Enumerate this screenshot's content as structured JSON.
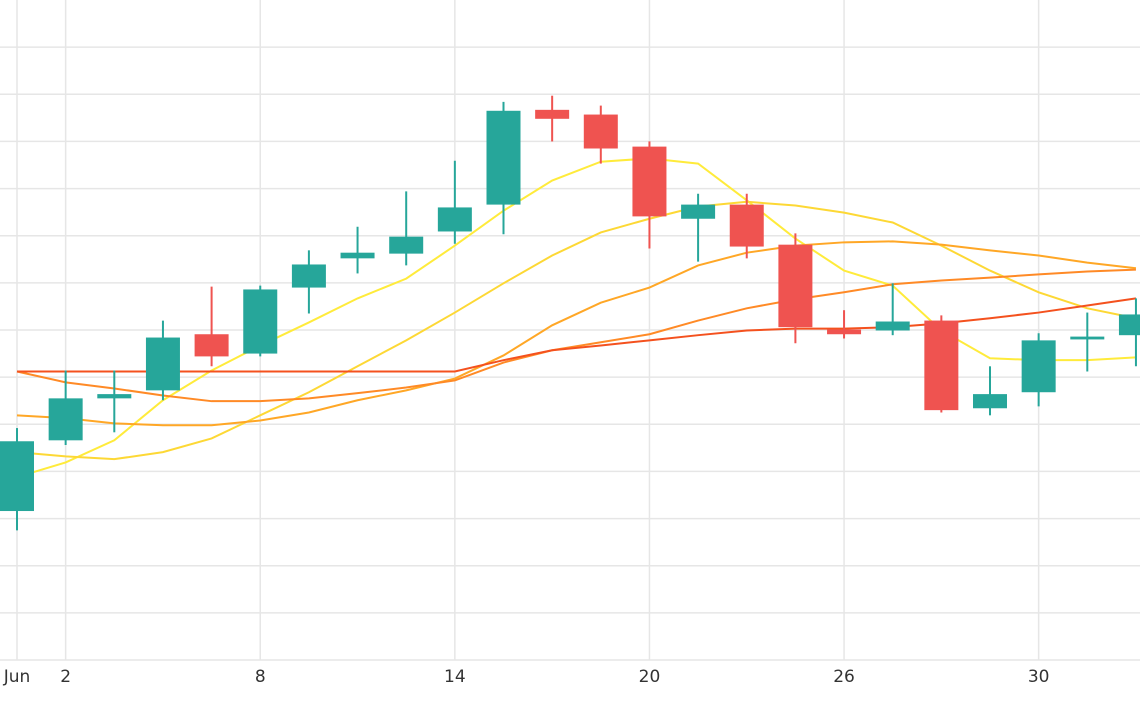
{
  "chart_data": {
    "type": "candlestick",
    "categories": [
      "Jun",
      "2",
      null,
      null,
      null,
      "8",
      null,
      null,
      null,
      "14",
      null,
      null,
      null,
      "20",
      null,
      null,
      null,
      "26",
      null,
      null,
      null,
      "30",
      null,
      null
    ],
    "open": [
      3.16,
      4.66,
      5.55,
      5.72,
      6.91,
      6.5,
      7.9,
      8.52,
      8.62,
      9.09,
      9.66,
      11.67,
      11.57,
      10.89,
      9.36,
      9.66,
      8.81,
      7.01,
      6.99,
      7.2,
      5.34,
      5.68,
      6.8,
      6.89
    ],
    "high": [
      4.92,
      6.14,
      6.14,
      7.2,
      7.92,
      7.94,
      8.69,
      9.19,
      9.94,
      10.59,
      11.84,
      11.97,
      11.76,
      11.0,
      9.89,
      9.89,
      9.05,
      7.42,
      7.99,
      7.31,
      6.23,
      6.93,
      7.37,
      7.67
    ],
    "low": [
      2.75,
      4.56,
      4.83,
      5.51,
      6.23,
      6.44,
      7.35,
      8.2,
      8.37,
      8.83,
      9.03,
      11.0,
      10.53,
      8.73,
      8.45,
      8.52,
      6.72,
      6.82,
      6.89,
      5.25,
      5.19,
      5.38,
      6.12,
      6.23
    ],
    "close": [
      4.64,
      5.55,
      5.64,
      6.84,
      6.44,
      7.86,
      8.39,
      8.64,
      8.98,
      9.6,
      11.65,
      11.48,
      10.85,
      9.41,
      9.66,
      8.77,
      7.06,
      6.91,
      7.18,
      5.3,
      5.64,
      6.78,
      6.86,
      7.33
    ],
    "up_color": "#26a69a",
    "down_color": "#ef5350",
    "lines": [
      {
        "color": "#ffeb3b",
        "values": [
          3.88,
          4.19,
          4.66,
          5.51,
          6.14,
          6.67,
          7.16,
          7.67,
          8.09,
          8.79,
          9.53,
          10.17,
          10.57,
          10.64,
          10.53,
          9.75,
          8.94,
          8.26,
          7.94,
          6.99,
          6.4,
          6.36,
          6.36,
          6.42
        ]
      },
      {
        "color": "#fdd835",
        "values": [
          4.41,
          4.32,
          4.26,
          4.41,
          4.7,
          5.19,
          5.68,
          6.23,
          6.78,
          7.37,
          7.99,
          8.58,
          9.07,
          9.36,
          9.62,
          9.72,
          9.64,
          9.49,
          9.28,
          8.79,
          8.26,
          7.8,
          7.46,
          7.25
        ]
      },
      {
        "color": "#ffa726",
        "values": [
          5.19,
          5.13,
          5.02,
          4.98,
          4.98,
          5.08,
          5.25,
          5.51,
          5.72,
          5.97,
          6.46,
          7.1,
          7.58,
          7.9,
          8.37,
          8.64,
          8.79,
          8.86,
          8.88,
          8.81,
          8.69,
          8.58,
          8.43,
          8.31
        ]
      },
      {
        "color": "#ff8a26",
        "values": [
          6.12,
          5.89,
          5.76,
          5.61,
          5.49,
          5.49,
          5.55,
          5.66,
          5.78,
          5.93,
          6.31,
          6.57,
          6.74,
          6.91,
          7.2,
          7.46,
          7.65,
          7.8,
          7.97,
          8.05,
          8.11,
          8.18,
          8.24,
          8.28
        ]
      },
      {
        "color": "#f4511e",
        "values": [
          6.12,
          6.12,
          6.12,
          6.12,
          6.12,
          6.12,
          6.12,
          6.12,
          6.12,
          6.12,
          6.36,
          6.57,
          6.67,
          6.78,
          6.89,
          6.99,
          7.03,
          7.03,
          7.06,
          7.14,
          7.25,
          7.37,
          7.52,
          7.67
        ]
      }
    ],
    "ylim": [
      0,
      14
    ],
    "yticks": [
      1,
      2,
      3,
      4,
      5,
      6,
      7,
      8,
      9,
      10,
      11,
      12,
      13
    ],
    "grid": true
  }
}
